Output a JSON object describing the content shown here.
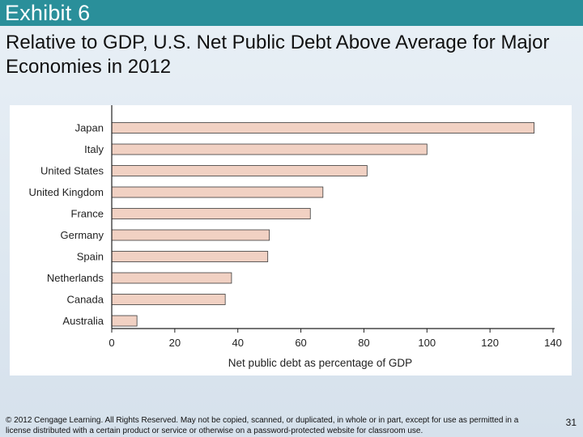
{
  "header": {
    "title": "Exhibit 6"
  },
  "subtitle": "Relative to GDP, U.S. Net Public Debt Above Average for Major Economies in 2012",
  "chart_data": {
    "type": "bar",
    "orientation": "horizontal",
    "categories": [
      "Japan",
      "Italy",
      "United States",
      "United Kingdom",
      "France",
      "Germany",
      "Spain",
      "Netherlands",
      "Canada",
      "Australia"
    ],
    "values": [
      134,
      100,
      81,
      67,
      63,
      50,
      49.5,
      38,
      36,
      8
    ],
    "xlabel": "Net public debt as percentage of GDP",
    "ylabel": "",
    "xlim": [
      0,
      140
    ],
    "xticks": [
      0,
      20,
      40,
      60,
      80,
      100,
      120,
      140
    ],
    "grid": false,
    "bar_color": "#f1d1c3"
  },
  "footer": {
    "copyright": "© 2012 Cengage Learning. All Rights Reserved. May not be copied, scanned, or duplicated, in whole or in part, except for use as permitted in a license distributed with a certain product or service or otherwise on a password-protected website for classroom use.",
    "page_number": "31"
  },
  "colors": {
    "header": "#2a8f9a",
    "bar": "#f1d1c3"
  }
}
